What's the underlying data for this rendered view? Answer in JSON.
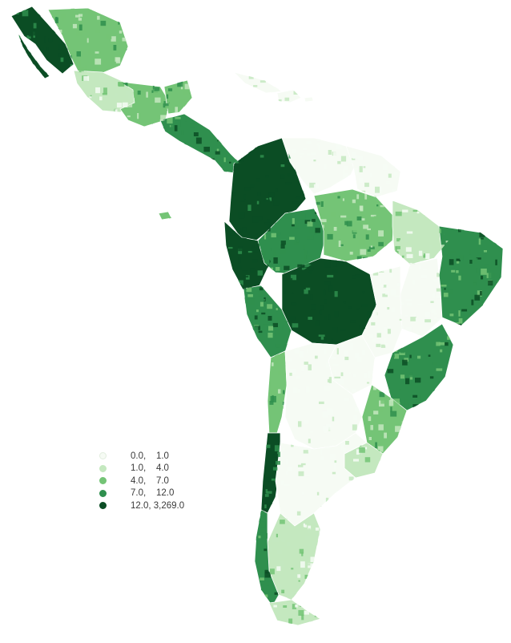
{
  "legend": {
    "items": [
      {
        "label": "0.0,    1.0",
        "color": "#f6fbf4"
      },
      {
        "label": "1.0,    4.0",
        "color": "#c4e8bf"
      },
      {
        "label": "4.0,    7.0",
        "color": "#74c476"
      },
      {
        "label": "7.0,    12.0",
        "color": "#2f8f4e"
      },
      {
        "label": "12.0, 3,269.0",
        "color": "#0b4d24"
      }
    ]
  },
  "map": {
    "no_data_color": "#e8ebf0",
    "regions": [
      {
        "id": "mexico-northwest",
        "class": 4
      },
      {
        "id": "mexico-north",
        "class": 2
      },
      {
        "id": "mexico-central",
        "class": 1
      },
      {
        "id": "mexico-south",
        "class": 2
      },
      {
        "id": "yucatan",
        "class": 2
      },
      {
        "id": "central-america",
        "class": 3
      },
      {
        "id": "colombia",
        "class": 4
      },
      {
        "id": "venezuela",
        "class": 0
      },
      {
        "id": "guianas",
        "class": 0
      },
      {
        "id": "ecuador-peru-north",
        "class": 4
      },
      {
        "id": "peru-south",
        "class": 3
      },
      {
        "id": "amazon-west",
        "class": 3
      },
      {
        "id": "amazon-central",
        "class": 2
      },
      {
        "id": "amazon-east",
        "class": 1
      },
      {
        "id": "brazil-northeast",
        "class": 3
      },
      {
        "id": "brazil-northeast-inland",
        "class": 0
      },
      {
        "id": "bolivia",
        "class": 4
      },
      {
        "id": "brazil-central",
        "class": 0
      },
      {
        "id": "brazil-southeast",
        "class": 3
      },
      {
        "id": "paraguay",
        "class": 0
      },
      {
        "id": "brazil-south",
        "class": 2
      },
      {
        "id": "uruguay",
        "class": 1
      },
      {
        "id": "chile-north",
        "class": 2
      },
      {
        "id": "chile-central",
        "class": 4
      },
      {
        "id": "argentina-north",
        "class": 0
      },
      {
        "id": "argentina-central",
        "class": 0
      },
      {
        "id": "argentina-south",
        "class": 1
      },
      {
        "id": "patagonia-chile",
        "class": 3
      },
      {
        "id": "tierra-del-fuego",
        "class": 1
      },
      {
        "id": "cuba",
        "class": 0
      },
      {
        "id": "hispaniola",
        "class": 0
      },
      {
        "id": "puerto-rico",
        "class": 0
      },
      {
        "id": "galapagos",
        "class": 2
      }
    ]
  }
}
